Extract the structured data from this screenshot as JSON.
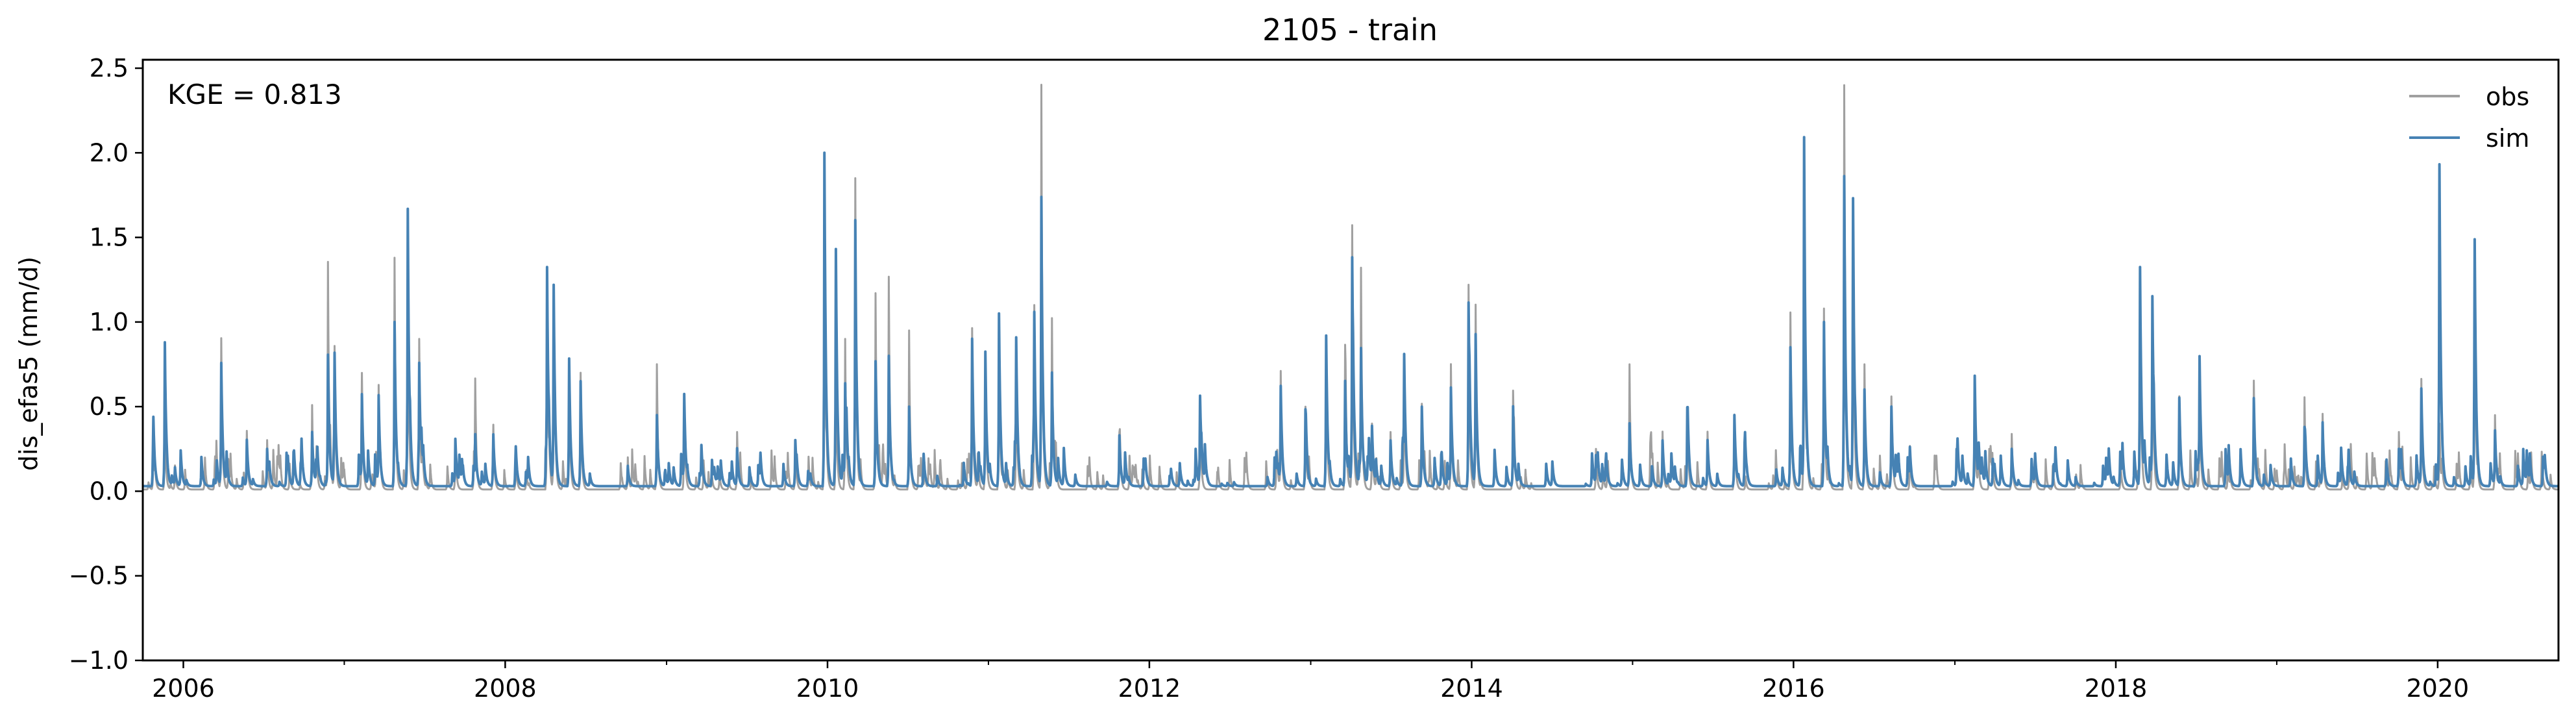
{
  "chart_data": {
    "type": "line",
    "title": "2105 - train",
    "xlabel": "",
    "ylabel": "dis_efas5 (mm/d)",
    "xlim": [
      "2005-10-01",
      "2020-10-01"
    ],
    "ylim": [
      -1.0,
      2.55
    ],
    "grid": false,
    "legend_position": "top-right",
    "annotation": "KGE = 0.813",
    "x_tick_labels": [
      "2006",
      "2008",
      "2010",
      "2012",
      "2014",
      "2016",
      "2018",
      "2020"
    ],
    "x_tick_dates": [
      "2006-01-01",
      "2008-01-01",
      "2010-01-01",
      "2012-01-01",
      "2014-01-01",
      "2016-01-01",
      "2018-01-01",
      "2020-01-01"
    ],
    "y_tick_values": [
      -1.0,
      -0.5,
      0.0,
      0.5,
      1.0,
      1.5,
      2.0,
      2.5
    ],
    "y_tick_labels": [
      "−1.0",
      "−0.5",
      "0.0",
      "0.5",
      "1.0",
      "1.5",
      "2.0",
      "2.5"
    ],
    "series": [
      {
        "name": "obs",
        "color": "#a0a0a0",
        "peaks": [
          [
            "2005-10-25",
            0.3
          ],
          [
            "2005-11-20",
            0.45
          ],
          [
            "2006-03-28",
            0.9
          ],
          [
            "2006-05-25",
            0.35
          ],
          [
            "2006-07-10",
            0.3
          ],
          [
            "2006-10-20",
            0.5
          ],
          [
            "2006-11-25",
            1.35
          ],
          [
            "2006-12-10",
            0.85
          ],
          [
            "2007-02-10",
            0.55
          ],
          [
            "2007-03-20",
            0.6
          ],
          [
            "2007-04-25",
            1.38
          ],
          [
            "2007-05-25",
            1.1
          ],
          [
            "2007-06-20",
            0.9
          ],
          [
            "2007-09-10",
            0.3
          ],
          [
            "2007-10-25",
            0.6
          ],
          [
            "2007-12-05",
            0.3
          ],
          [
            "2008-01-25",
            0.2
          ],
          [
            "2008-04-05",
            1.3
          ],
          [
            "2008-04-20",
            1.0
          ],
          [
            "2008-05-25",
            0.75
          ],
          [
            "2008-06-20",
            0.7
          ],
          [
            "2008-10-05",
            0.2
          ],
          [
            "2008-12-10",
            0.75
          ],
          [
            "2009-02-10",
            0.55
          ],
          [
            "2009-06-10",
            0.35
          ],
          [
            "2009-10-20",
            0.3
          ],
          [
            "2009-12-25",
            1.6
          ],
          [
            "2010-01-20",
            0.8
          ],
          [
            "2010-02-10",
            0.9
          ],
          [
            "2010-03-05",
            1.85
          ],
          [
            "2010-04-20",
            0.9
          ],
          [
            "2010-05-20",
            1.2
          ],
          [
            "2010-07-05",
            0.95
          ],
          [
            "2010-11-25",
            0.95
          ],
          [
            "2010-12-25",
            0.8
          ],
          [
            "2011-01-25",
            1.0
          ],
          [
            "2011-03-05",
            0.82
          ],
          [
            "2011-04-15",
            1.1
          ],
          [
            "2011-05-01",
            2.4
          ],
          [
            "2011-05-25",
            1.0
          ],
          [
            "2011-10-25",
            0.3
          ],
          [
            "2012-04-25",
            0.55
          ],
          [
            "2012-10-25",
            0.7
          ],
          [
            "2012-12-20",
            0.5
          ],
          [
            "2013-02-05",
            0.9
          ],
          [
            "2013-03-20",
            0.8
          ],
          [
            "2013-04-05",
            1.45
          ],
          [
            "2013-04-25",
            1.3
          ],
          [
            "2013-05-20",
            0.4
          ],
          [
            "2013-07-01",
            0.35
          ],
          [
            "2013-08-01",
            0.7
          ],
          [
            "2013-09-10",
            0.5
          ],
          [
            "2013-11-15",
            0.75
          ],
          [
            "2013-12-25",
            1.22
          ],
          [
            "2014-01-10",
            1.1
          ],
          [
            "2014-04-05",
            0.55
          ],
          [
            "2014-10-10",
            0.25
          ],
          [
            "2014-12-25",
            0.75
          ],
          [
            "2015-03-10",
            0.35
          ],
          [
            "2015-05-05",
            0.45
          ],
          [
            "2015-06-20",
            0.35
          ],
          [
            "2015-08-20",
            0.45
          ],
          [
            "2015-12-25",
            1.05
          ],
          [
            "2016-01-25",
            2.05
          ],
          [
            "2016-03-10",
            1.05
          ],
          [
            "2016-04-25",
            2.4
          ],
          [
            "2016-05-15",
            1.7
          ],
          [
            "2016-06-10",
            0.75
          ],
          [
            "2016-08-10",
            0.55
          ],
          [
            "2017-02-15",
            0.5
          ],
          [
            "2017-05-10",
            0.3
          ],
          [
            "2018-02-25",
            1.3
          ],
          [
            "2018-03-25",
            1.1
          ],
          [
            "2018-05-25",
            0.55
          ],
          [
            "2018-07-10",
            0.75
          ],
          [
            "2018-11-10",
            0.65
          ],
          [
            "2019-03-05",
            0.55
          ],
          [
            "2019-04-15",
            0.45
          ],
          [
            "2019-10-05",
            0.35
          ],
          [
            "2019-11-25",
            0.65
          ],
          [
            "2020-01-05",
            0.4
          ],
          [
            "2020-03-25",
            1.3
          ],
          [
            "2020-05-10",
            0.45
          ],
          [
            "2020-07-01",
            0.2
          ]
        ]
      },
      {
        "name": "sim",
        "color": "#4682b4",
        "peaks": [
          [
            "2005-10-25",
            0.35
          ],
          [
            "2005-11-20",
            0.88
          ],
          [
            "2006-03-28",
            0.75
          ],
          [
            "2006-05-25",
            0.3
          ],
          [
            "2006-07-10",
            0.25
          ],
          [
            "2006-10-20",
            0.35
          ],
          [
            "2006-11-25",
            0.8
          ],
          [
            "2006-12-10",
            0.75
          ],
          [
            "2007-02-10",
            0.55
          ],
          [
            "2007-03-20",
            0.55
          ],
          [
            "2007-04-25",
            1.0
          ],
          [
            "2007-05-25",
            1.65
          ],
          [
            "2007-06-20",
            0.7
          ],
          [
            "2007-09-10",
            0.3
          ],
          [
            "2007-10-25",
            0.3
          ],
          [
            "2007-12-05",
            0.3
          ],
          [
            "2008-01-25",
            0.2
          ],
          [
            "2008-04-05",
            1.25
          ],
          [
            "2008-04-20",
            1.2
          ],
          [
            "2008-05-25",
            0.65
          ],
          [
            "2008-06-20",
            0.65
          ],
          [
            "2008-10-05",
            0.15
          ],
          [
            "2008-12-10",
            0.45
          ],
          [
            "2009-02-10",
            0.55
          ],
          [
            "2009-06-10",
            0.25
          ],
          [
            "2009-10-20",
            0.3
          ],
          [
            "2009-12-25",
            2.0
          ],
          [
            "2010-01-20",
            1.4
          ],
          [
            "2010-02-10",
            0.6
          ],
          [
            "2010-03-05",
            1.6
          ],
          [
            "2010-04-20",
            0.75
          ],
          [
            "2010-05-20",
            0.8
          ],
          [
            "2010-07-05",
            0.5
          ],
          [
            "2010-11-25",
            0.9
          ],
          [
            "2010-12-25",
            0.75
          ],
          [
            "2011-01-25",
            1.05
          ],
          [
            "2011-03-05",
            0.8
          ],
          [
            "2011-04-15",
            0.95
          ],
          [
            "2011-05-01",
            1.73
          ],
          [
            "2011-05-25",
            0.7
          ],
          [
            "2011-10-25",
            0.33
          ],
          [
            "2012-04-25",
            0.55
          ],
          [
            "2012-10-25",
            0.6
          ],
          [
            "2012-12-20",
            0.45
          ],
          [
            "2013-02-05",
            0.92
          ],
          [
            "2013-03-20",
            0.65
          ],
          [
            "2013-04-05",
            1.35
          ],
          [
            "2013-04-25",
            0.8
          ],
          [
            "2013-05-20",
            0.35
          ],
          [
            "2013-07-01",
            0.3
          ],
          [
            "2013-08-01",
            0.7
          ],
          [
            "2013-09-10",
            0.5
          ],
          [
            "2013-11-15",
            0.6
          ],
          [
            "2013-12-25",
            1.1
          ],
          [
            "2014-01-10",
            0.9
          ],
          [
            "2014-04-05",
            0.5
          ],
          [
            "2014-10-10",
            0.2
          ],
          [
            "2014-12-25",
            0.4
          ],
          [
            "2015-03-10",
            0.3
          ],
          [
            "2015-05-05",
            0.45
          ],
          [
            "2015-06-20",
            0.3
          ],
          [
            "2015-08-20",
            0.45
          ],
          [
            "2015-12-25",
            0.85
          ],
          [
            "2016-01-25",
            2.07
          ],
          [
            "2016-03-10",
            1.0
          ],
          [
            "2016-04-25",
            1.86
          ],
          [
            "2016-05-15",
            1.72
          ],
          [
            "2016-06-10",
            0.6
          ],
          [
            "2016-08-10",
            0.5
          ],
          [
            "2017-02-15",
            0.55
          ],
          [
            "2017-05-10",
            0.25
          ],
          [
            "2018-02-25",
            1.32
          ],
          [
            "2018-03-25",
            1.12
          ],
          [
            "2018-05-25",
            0.55
          ],
          [
            "2018-07-10",
            0.75
          ],
          [
            "2018-11-10",
            0.55
          ],
          [
            "2019-03-05",
            0.35
          ],
          [
            "2019-04-15",
            0.4
          ],
          [
            "2019-10-05",
            0.25
          ],
          [
            "2019-11-25",
            0.6
          ],
          [
            "2020-01-05",
            1.92
          ],
          [
            "2020-03-25",
            1.32
          ],
          [
            "2020-05-10",
            0.35
          ],
          [
            "2020-07-01",
            0.15
          ]
        ]
      }
    ]
  }
}
